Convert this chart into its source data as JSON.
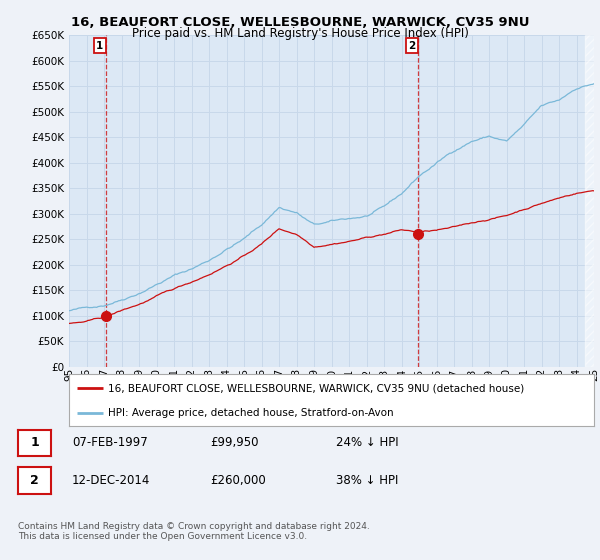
{
  "title_line1": "16, BEAUFORT CLOSE, WELLESBOURNE, WARWICK, CV35 9NU",
  "title_line2": "Price paid vs. HM Land Registry's House Price Index (HPI)",
  "ylim": [
    0,
    650000
  ],
  "yticks": [
    0,
    50000,
    100000,
    150000,
    200000,
    250000,
    300000,
    350000,
    400000,
    450000,
    500000,
    550000,
    600000,
    650000
  ],
  "bg_color": "#eef2f8",
  "plot_bg": "#dce8f5",
  "grid_color": "#c8d8ea",
  "hpi_color": "#7ab8d8",
  "price_color": "#cc1111",
  "legend_hpi_label": "HPI: Average price, detached house, Stratford-on-Avon",
  "legend_price_label": "16, BEAUFORT CLOSE, WELLESBOURNE, WARWICK, CV35 9NU (detached house)",
  "annotation1_text_date": "07-FEB-1997",
  "annotation1_text_price": "£99,950",
  "annotation1_text_hpi": "24% ↓ HPI",
  "annotation2_text_date": "12-DEC-2014",
  "annotation2_text_price": "£260,000",
  "annotation2_text_hpi": "38% ↓ HPI",
  "footnote": "Contains HM Land Registry data © Crown copyright and database right 2024.\nThis data is licensed under the Open Government Licence v3.0.",
  "sale1_x": 1997.1,
  "sale1_y": 99950,
  "sale2_x": 2014.95,
  "sale2_y": 260000,
  "xmin": 1995,
  "xmax": 2025,
  "hpi_anchors_x": [
    1995,
    1996,
    1997,
    1998,
    1999,
    2000,
    2001,
    2002,
    2003,
    2004,
    2005,
    2006,
    2007,
    2008,
    2009,
    2010,
    2011,
    2012,
    2013,
    2014,
    2015,
    2016,
    2017,
    2018,
    2019,
    2020,
    2021,
    2022,
    2023,
    2024,
    2025
  ],
  "hpi_anchors_y": [
    110000,
    115000,
    122000,
    135000,
    150000,
    168000,
    185000,
    198000,
    215000,
    238000,
    258000,
    285000,
    320000,
    310000,
    285000,
    290000,
    295000,
    300000,
    315000,
    340000,
    375000,
    400000,
    425000,
    445000,
    455000,
    445000,
    475000,
    510000,
    520000,
    545000,
    555000
  ],
  "price_anchors_x": [
    1995,
    1996,
    1997,
    1998,
    1999,
    2000,
    2001,
    2002,
    2003,
    2004,
    2005,
    2006,
    2007,
    2008,
    2009,
    2010,
    2011,
    2012,
    2013,
    2014,
    2015,
    2016,
    2017,
    2018,
    2019,
    2020,
    2021,
    2022,
    2023,
    2024,
    2025
  ],
  "price_anchors_y": [
    85000,
    88000,
    95000,
    108000,
    120000,
    135000,
    148000,
    162000,
    178000,
    196000,
    215000,
    238000,
    268000,
    258000,
    235000,
    242000,
    248000,
    255000,
    262000,
    270000,
    265000,
    268000,
    272000,
    280000,
    288000,
    295000,
    308000,
    320000,
    330000,
    340000,
    345000
  ]
}
